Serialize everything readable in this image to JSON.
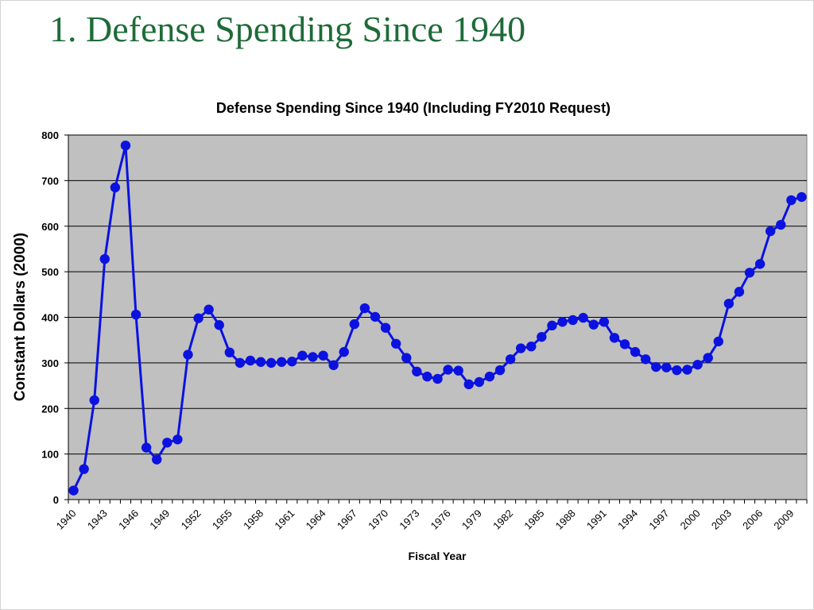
{
  "slide": {
    "title": "1. Defense Spending Since 1940"
  },
  "colors": {
    "title": "#1e6b38",
    "plot_background": "#c0c0c0",
    "series": "#0b12e0",
    "gridline": "#000000"
  },
  "chart_data": {
    "type": "line",
    "title": "Defense Spending Since 1940 (Including FY2010 Request)",
    "xlabel": "Fiscal Year",
    "ylabel": "Constant Dollars (2000)",
    "ylim": [
      0,
      800
    ],
    "yticks": [
      0,
      100,
      200,
      300,
      400,
      500,
      600,
      700,
      800
    ],
    "xtick_labels": [
      "1940",
      "1943",
      "1946",
      "1949",
      "1952",
      "1955",
      "1958",
      "1961",
      "1964",
      "1967",
      "1970",
      "1973",
      "1976",
      "1979",
      "1982",
      "1985",
      "1988",
      "1991",
      "1994",
      "1997",
      "2000",
      "2003",
      "2006",
      "2009"
    ],
    "grid": "horizontal",
    "legend": "none",
    "marker": "circle",
    "x": [
      1940,
      1941,
      1942,
      1943,
      1944,
      1945,
      1946,
      1947,
      1948,
      1949,
      1950,
      1951,
      1952,
      1953,
      1954,
      1955,
      1956,
      1957,
      1958,
      1959,
      1960,
      1961,
      1962,
      1963,
      1964,
      1965,
      1966,
      1967,
      1968,
      1969,
      1970,
      1971,
      1972,
      1973,
      1974,
      1975,
      1976,
      1977,
      1978,
      1979,
      1980,
      1981,
      1982,
      1983,
      1984,
      1985,
      1986,
      1987,
      1988,
      1989,
      1990,
      1991,
      1992,
      1993,
      1994,
      1995,
      1996,
      1997,
      1998,
      1999,
      2000,
      2001,
      2002,
      2003,
      2004,
      2005,
      2006,
      2007,
      2008,
      2009,
      2010
    ],
    "series": [
      {
        "values": [
          20,
          67,
          218,
          528,
          685,
          777,
          406,
          114,
          88,
          125,
          132,
          318,
          398,
          417,
          383,
          323,
          300,
          305,
          302,
          300,
          302,
          303,
          316,
          313,
          316,
          295,
          324,
          385,
          420,
          401,
          377,
          342,
          311,
          281,
          270,
          265,
          285,
          283,
          253,
          258,
          270,
          284,
          308,
          332,
          336,
          357,
          382,
          390,
          394,
          399,
          384,
          390,
          355,
          341,
          324,
          308,
          291,
          290,
          284,
          285,
          296,
          311,
          347,
          430,
          456,
          498,
          517,
          589,
          603,
          657,
          664
        ]
      }
    ]
  }
}
